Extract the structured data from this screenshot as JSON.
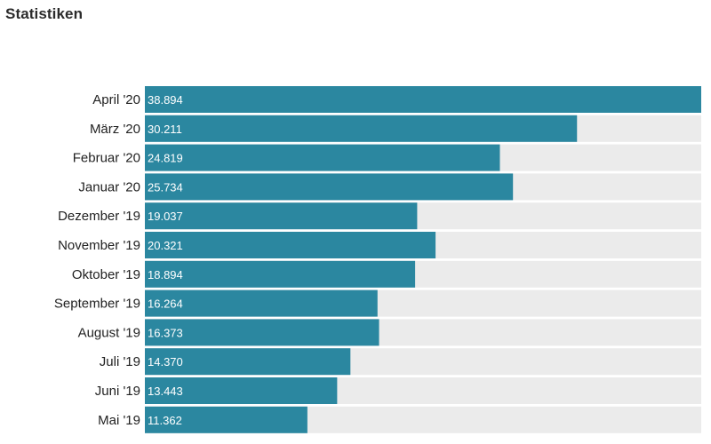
{
  "header": {
    "title": "Statistiken"
  },
  "colors": {
    "bar": "#2b87a0",
    "track": "#ebebeb",
    "label": "#222222",
    "value_label": "#ffffff"
  },
  "chart_data": {
    "type": "bar",
    "orientation": "horizontal",
    "categories": [
      "April '20",
      "März '20",
      "Februar '20",
      "Januar '20",
      "Dezember '19",
      "November '19",
      "Oktober '19",
      "September '19",
      "August '19",
      "Juli '19",
      "Juni '19",
      "Mai '19"
    ],
    "values": [
      38894,
      30211,
      24819,
      25734,
      19037,
      20321,
      18894,
      16264,
      16373,
      14370,
      13443,
      11362
    ],
    "value_labels": [
      "38.894",
      "30.211",
      "24.819",
      "25.734",
      "19.037",
      "20.321",
      "18.894",
      "16.264",
      "16.373",
      "14.370",
      "13.443",
      "11.362"
    ],
    "xlim": [
      0,
      38894
    ],
    "grid": false,
    "legend": "none"
  }
}
